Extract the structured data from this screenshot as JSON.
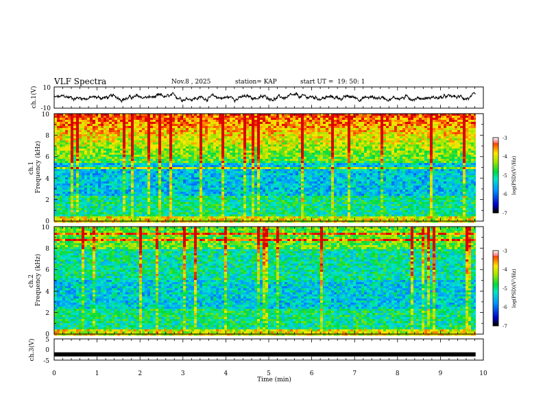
{
  "header": {
    "title": "VLF Spectra",
    "date": "Nov.8  , 2025",
    "station": "station= KAP",
    "start_label": "start  UT  =",
    "start_time": "19: 50: 1"
  },
  "chart_data": [
    {
      "type": "line",
      "name": "ch1-waveform",
      "ylabel": "ch.1(V)",
      "ylim": [
        -10,
        10
      ],
      "yticks": [
        "10",
        "-10"
      ],
      "xlim": [
        0,
        10
      ],
      "x_extent_min": 9.82,
      "trace_center_v": 0,
      "trace_amplitude_v": 6
    },
    {
      "type": "heatmap",
      "name": "ch1-spectrogram",
      "ylabel": "ch.1\nFrequency  (kHz)",
      "ylim": [
        0,
        10
      ],
      "yticks": [
        "0",
        "2",
        "4",
        "6",
        "8",
        "10"
      ],
      "xlim": [
        0,
        10
      ],
      "x_extent_min": 9.82,
      "colorbar": {
        "label": "log(PSD)(V²/Hz)",
        "range": [
          -7,
          -3
        ],
        "ticks": [
          "-3",
          "-4",
          "-5",
          "-6",
          "-7"
        ]
      }
    },
    {
      "type": "heatmap",
      "name": "ch2-spectrogram",
      "ylabel": "ch.2\nFrequency  (kHz)",
      "ylim": [
        0,
        10
      ],
      "yticks": [
        "0",
        "2",
        "4",
        "6",
        "8",
        "10"
      ],
      "xlim": [
        0,
        10
      ],
      "x_extent_min": 9.82,
      "colorbar": {
        "label": "log(PSD)(V²/Hz)",
        "range": [
          -7,
          -3
        ],
        "ticks": [
          "-3",
          "-4",
          "-5",
          "-6",
          "-7"
        ]
      }
    },
    {
      "type": "line",
      "name": "ch3-waveform",
      "ylabel": "ch.3(V)",
      "ylim": [
        -5,
        5
      ],
      "yticks": [
        "5",
        "0",
        "-5"
      ],
      "xlim": [
        0,
        10
      ],
      "x_extent_min": 9.82,
      "trace_center_v": -2.3,
      "trace_amplitude_v": 0.6
    }
  ],
  "x_axis": {
    "label": "Time  (min)",
    "ticks": [
      "0",
      "1",
      "2",
      "3",
      "4",
      "5",
      "6",
      "7",
      "8",
      "9",
      "10"
    ]
  },
  "colors": {
    "trace": "#000000",
    "axes": "#000000",
    "background": "#ffffff"
  }
}
